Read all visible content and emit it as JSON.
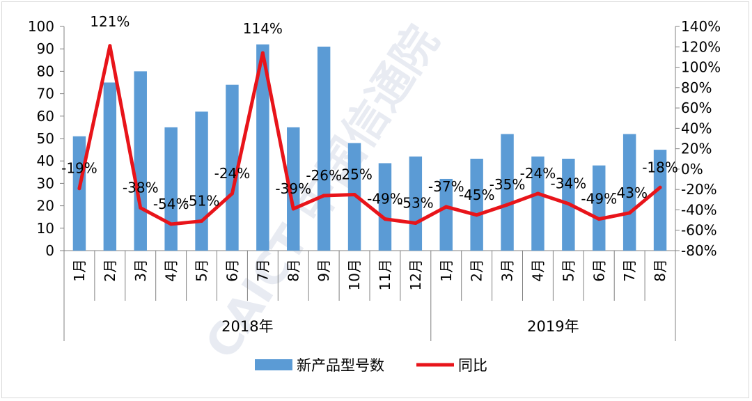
{
  "chart_data": {
    "type": "bar",
    "categories": [
      "1月",
      "2月",
      "3月",
      "4月",
      "5月",
      "6月",
      "7月",
      "8月",
      "9月",
      "10月",
      "11月",
      "12月",
      "1月",
      "2月",
      "3月",
      "4月",
      "5月",
      "6月",
      "7月",
      "8月"
    ],
    "groups": [
      {
        "label": "2018年",
        "count": 12
      },
      {
        "label": "2019年",
        "count": 8
      }
    ],
    "series": [
      {
        "name": "新产品型号数",
        "type": "bar",
        "axis": "left",
        "values": [
          51,
          75,
          80,
          55,
          62,
          74,
          92,
          55,
          91,
          48,
          39,
          42,
          32,
          41,
          52,
          42,
          41,
          38,
          52,
          45
        ]
      },
      {
        "name": "同比",
        "type": "line",
        "axis": "right",
        "values": [
          -19,
          121,
          -38,
          -54,
          -51,
          -24,
          114,
          -39,
          -26,
          -25,
          -49,
          -53,
          -37,
          -45,
          -35,
          -24,
          -34,
          -49,
          -43,
          -18
        ],
        "labels": [
          "-19%",
          "121%",
          "-38%",
          "-54%",
          "-51%",
          "-24%",
          "114%",
          "-39%",
          "-26%",
          "-25%",
          "-49%",
          "-53%",
          "-37%",
          "-45%",
          "-35%",
          "-24%",
          "-34%",
          "-49%",
          "-43%",
          "-18%"
        ]
      }
    ],
    "y_left": {
      "lim": [
        0,
        100
      ],
      "ticks": [
        "0",
        "10",
        "20",
        "30",
        "40",
        "50",
        "60",
        "70",
        "80",
        "90",
        "100"
      ]
    },
    "y_right": {
      "lim": [
        -80,
        140
      ],
      "ticks": [
        "-80%",
        "-60%",
        "-40%",
        "-20%",
        "0%",
        "20%",
        "40%",
        "60%",
        "80%",
        "100%",
        "120%",
        "140%"
      ]
    },
    "grid": false,
    "legend_position": "bottom",
    "colors": {
      "bar": "#5b9bd5",
      "line": "#e8141a"
    }
  },
  "legend": {
    "bar_label": "新产品型号数",
    "line_label": "同比"
  },
  "watermark": {
    "text": "CAICT 中国信通院"
  }
}
